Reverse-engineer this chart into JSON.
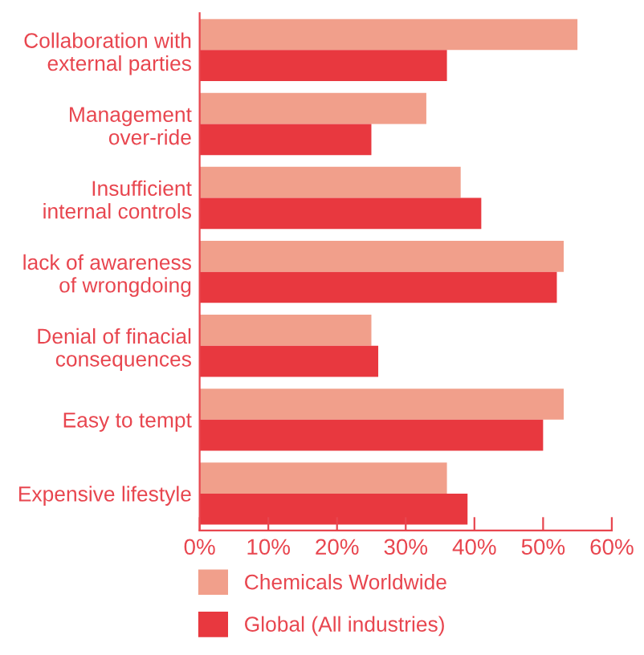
{
  "chart_data": {
    "type": "bar",
    "orientation": "horizontal",
    "categories": [
      "Collaboration with\nexternal parties",
      "Management\nover-ride",
      "Insufficient\ninternal controls",
      "lack of awareness\nof wrongdoing",
      "Denial of finacial\nconsequences",
      "Easy to tempt",
      "Expensive lifestyle"
    ],
    "series": [
      {
        "name": "Chemicals Worldwide",
        "color": "#f19f8b",
        "values": [
          55,
          33,
          38,
          53,
          25,
          53,
          36
        ]
      },
      {
        "name": "Global (All industries)",
        "color": "#e8383f",
        "values": [
          36,
          25,
          41,
          52,
          26,
          50,
          39
        ]
      }
    ],
    "xlim": [
      0,
      60
    ],
    "xticks": [
      {
        "value": 0,
        "label": "0%"
      },
      {
        "value": 10,
        "label": "10%"
      },
      {
        "value": 20,
        "label": "20%"
      },
      {
        "value": 30,
        "label": "30%"
      },
      {
        "value": 40,
        "label": "40%"
      },
      {
        "value": 50,
        "label": "50%"
      },
      {
        "value": 60,
        "label": "60%"
      }
    ],
    "grid": false,
    "legend": "bottom"
  }
}
